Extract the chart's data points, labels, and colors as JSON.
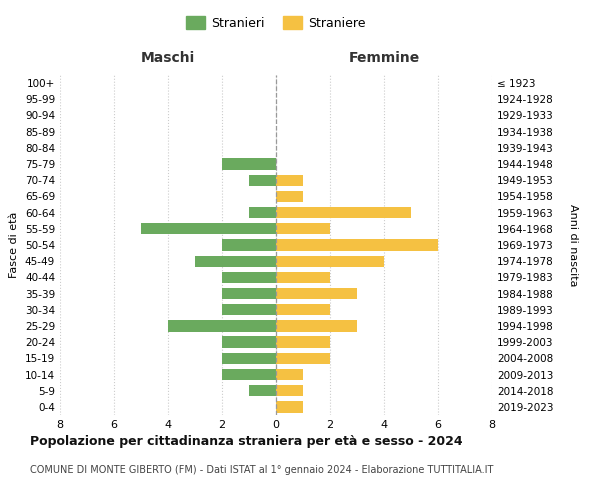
{
  "age_groups": [
    "100+",
    "95-99",
    "90-94",
    "85-89",
    "80-84",
    "75-79",
    "70-74",
    "65-69",
    "60-64",
    "55-59",
    "50-54",
    "45-49",
    "40-44",
    "35-39",
    "30-34",
    "25-29",
    "20-24",
    "15-19",
    "10-14",
    "5-9",
    "0-4"
  ],
  "birth_years": [
    "≤ 1923",
    "1924-1928",
    "1929-1933",
    "1934-1938",
    "1939-1943",
    "1944-1948",
    "1949-1953",
    "1954-1958",
    "1959-1963",
    "1964-1968",
    "1969-1973",
    "1974-1978",
    "1979-1983",
    "1984-1988",
    "1989-1993",
    "1994-1998",
    "1999-2003",
    "2004-2008",
    "2009-2013",
    "2014-2018",
    "2019-2023"
  ],
  "maschi": [
    0,
    0,
    0,
    0,
    0,
    2,
    1,
    0,
    1,
    5,
    2,
    3,
    2,
    2,
    2,
    4,
    2,
    2,
    2,
    1,
    0
  ],
  "femmine": [
    0,
    0,
    0,
    0,
    0,
    0,
    1,
    1,
    5,
    2,
    6,
    4,
    2,
    3,
    2,
    3,
    2,
    2,
    1,
    1,
    1
  ],
  "male_color": "#6aaa5e",
  "female_color": "#f5c142",
  "title": "Popolazione per cittadinanza straniera per età e sesso - 2024",
  "subtitle": "COMUNE DI MONTE GIBERTO (FM) - Dati ISTAT al 1° gennaio 2024 - Elaborazione TUTTITALIA.IT",
  "xlabel_left": "Maschi",
  "xlabel_right": "Femmine",
  "ylabel_left": "Fasce di età",
  "ylabel_right": "Anni di nascita",
  "legend_male": "Stranieri",
  "legend_female": "Straniere",
  "xlim": 8,
  "background_color": "#ffffff",
  "grid_color": "#cccccc"
}
